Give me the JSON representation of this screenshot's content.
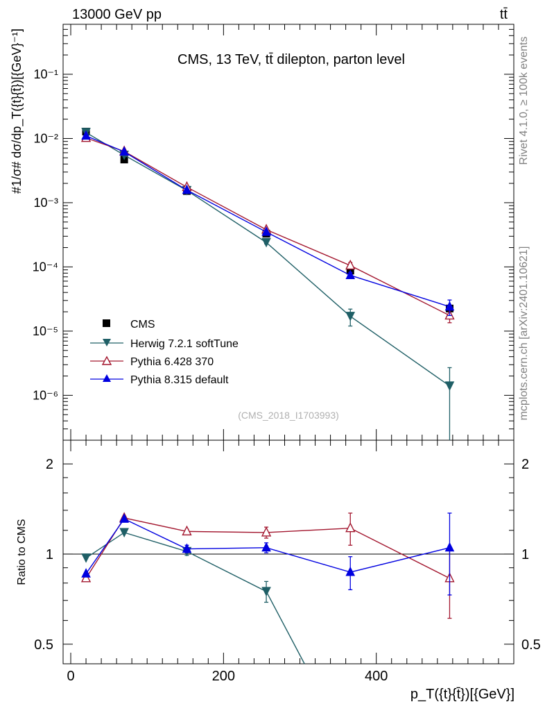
{
  "header": {
    "left": "13000 GeV pp",
    "right": "tt̄"
  },
  "side_labels": {
    "rivet": "Rivet 4.1.0, ≥ 100k events",
    "source": "mcplots.cern.ch [arXiv:2401.10621]"
  },
  "colors": {
    "cms": "#000000",
    "herwig": "#1f5f66",
    "pythia6": "#a3172f",
    "pythia8": "#0000e0"
  },
  "chart_data": [
    {
      "type": "line",
      "panel": "main",
      "title": "CMS, 13 TeV, tt̄ dilepton, parton level",
      "watermark": "(CMS_2018_I1703993)",
      "ylabel": "#1/σ# dσ/dp_T({t}{t̄})[{GeV}⁻¹]",
      "yscale": "log",
      "xlim": [
        -10,
        580
      ],
      "ylim": [
        2e-07,
        0.6
      ],
      "yticks": [
        {
          "value": 1e-06,
          "label": "10⁻⁶"
        },
        {
          "value": 1e-05,
          "label": "10⁻⁵"
        },
        {
          "value": 0.0001,
          "label": "10⁻⁴"
        },
        {
          "value": 0.001,
          "label": "10⁻³"
        },
        {
          "value": 0.01,
          "label": "10⁻²"
        },
        {
          "value": 0.1,
          "label": "10⁻¹"
        }
      ],
      "legend_position": "bottom-left",
      "series": [
        {
          "name": "CMS",
          "key": "cms",
          "marker": "square",
          "line": false,
          "x": [
            20,
            70,
            152,
            256,
            366,
            496
          ],
          "y": [
            0.0128,
            0.0047,
            0.00152,
            0.00033,
            8.75e-05,
            2.25e-05
          ],
          "err": [
            0,
            0,
            0,
            0,
            0,
            0
          ]
        },
        {
          "name": "Herwig 7.2.1 softTune",
          "key": "herwig",
          "marker": "triangle-down",
          "line": true,
          "x": [
            20,
            70,
            152,
            256,
            366,
            496
          ],
          "y": [
            0.0124,
            0.0055,
            0.00155,
            0.00024,
            1.7e-05,
            1.4e-06
          ],
          "err": [
            0,
            0,
            0,
            1.2e-05,
            5e-06,
            1.3e-06
          ]
        },
        {
          "name": "Pythia 6.428 370",
          "key": "pythia6",
          "marker": "triangle-up-open",
          "line": true,
          "x": [
            20,
            70,
            152,
            256,
            366,
            496
          ],
          "y": [
            0.0102,
            0.0063,
            0.00175,
            0.00038,
            0.000105,
            1.75e-05
          ],
          "err": [
            0,
            0,
            0,
            1.5e-05,
            1.2e-05,
            4e-06
          ]
        },
        {
          "name": "Pythia 8.315 default",
          "key": "pythia8",
          "marker": "triangle-up",
          "line": true,
          "x": [
            20,
            70,
            152,
            256,
            366,
            496
          ],
          "y": [
            0.011,
            0.0062,
            0.00157,
            0.00035,
            7.4e-05,
            2.4e-05
          ],
          "err": [
            0,
            0,
            0,
            1.2e-05,
            8e-06,
            6.5e-06
          ]
        }
      ]
    },
    {
      "type": "line",
      "panel": "ratio",
      "ylabel": "Ratio to CMS",
      "xlabel": "p_T({t}{t̄})[{GeV}]",
      "yscale": "log",
      "xlim": [
        -10,
        580
      ],
      "ylim": [
        0.43,
        2.4
      ],
      "reference": 1,
      "xticks": [
        0,
        200,
        400
      ],
      "yticks": [
        {
          "value": 0.5,
          "label": "0.5"
        },
        {
          "value": 1,
          "label": "1"
        },
        {
          "value": 2,
          "label": "2"
        }
      ],
      "series": [
        {
          "name": "Herwig 7.2.1 softTune",
          "key": "herwig",
          "marker": "triangle-down",
          "x": [
            20,
            70,
            152,
            256,
            306
          ],
          "y": [
            0.97,
            1.18,
            1.02,
            0.75,
            0.43
          ],
          "err": [
            0,
            0,
            0.03,
            0.06,
            0
          ]
        },
        {
          "name": "Pythia 6.428 370",
          "key": "pythia6",
          "marker": "triangle-up-open",
          "x": [
            20,
            70,
            152,
            256,
            366,
            496
          ],
          "y": [
            0.83,
            1.32,
            1.19,
            1.18,
            1.22,
            0.83
          ],
          "err": [
            0,
            0,
            0.02,
            0.05,
            0.15,
            0.22
          ]
        },
        {
          "name": "Pythia 8.315 default",
          "key": "pythia8",
          "marker": "triangle-up",
          "x": [
            20,
            70,
            152,
            256,
            366,
            496
          ],
          "y": [
            0.86,
            1.31,
            1.04,
            1.05,
            0.87,
            1.05
          ],
          "err": [
            0,
            0,
            0.03,
            0.04,
            0.11,
            0.32
          ]
        }
      ]
    }
  ]
}
